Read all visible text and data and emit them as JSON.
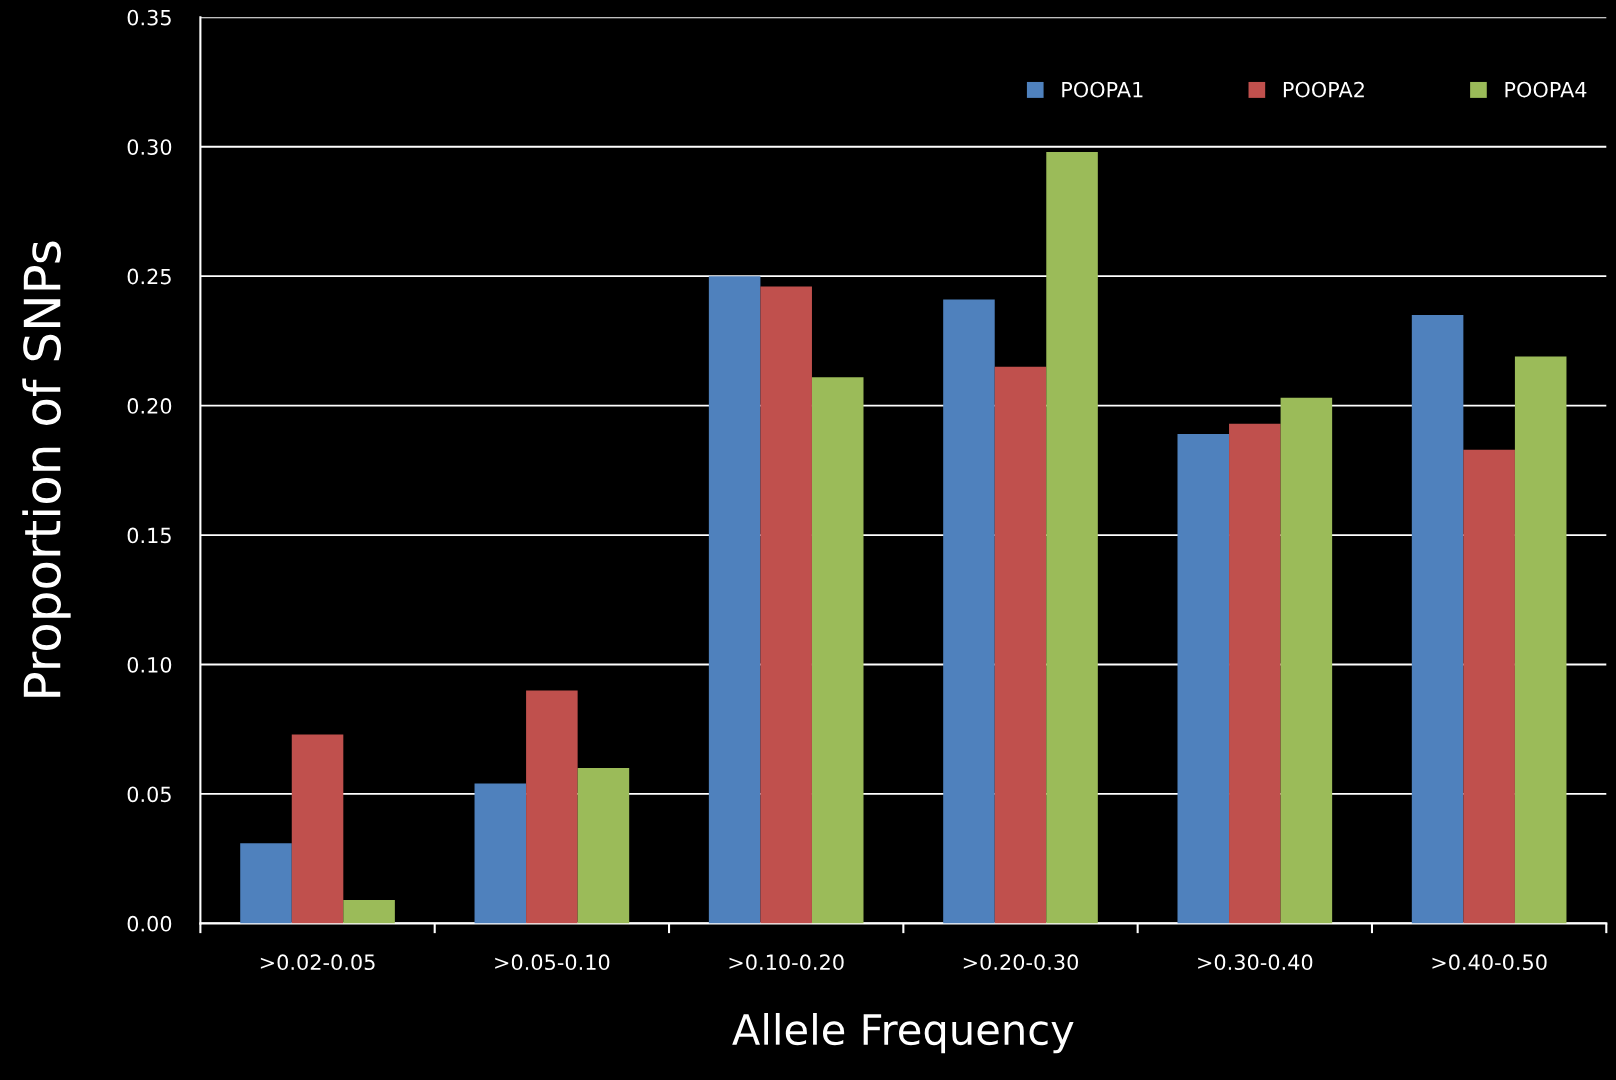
{
  "chart_data": {
    "type": "bar",
    "xlabel": "Allele Frequency",
    "ylabel": "Proportion of SNPs",
    "categories": [
      ">0.02-0.05",
      ">0.05-0.10",
      ">0.10-0.20",
      ">0.20-0.30",
      ">0.30-0.40",
      ">0.40-0.50"
    ],
    "series": [
      {
        "name": "POOPA1",
        "color": "#4f81bd",
        "values": [
          0.031,
          0.054,
          0.25,
          0.241,
          0.189,
          0.235
        ]
      },
      {
        "name": "POOPA2",
        "color": "#c0504d",
        "values": [
          0.073,
          0.09,
          0.246,
          0.215,
          0.193,
          0.183
        ]
      },
      {
        "name": "POOPA4",
        "color": "#9bbb59",
        "values": [
          0.009,
          0.06,
          0.211,
          0.298,
          0.203,
          0.219
        ]
      }
    ],
    "ylim": [
      0,
      0.35
    ],
    "yticks": [
      {
        "value": 0,
        "label": "0.00"
      },
      {
        "value": 0.05,
        "label": "0.05"
      },
      {
        "value": 0.1,
        "label": "0.10"
      },
      {
        "value": 0.15,
        "label": "0.15"
      },
      {
        "value": 0.2,
        "label": "0.20"
      },
      {
        "value": 0.25,
        "label": "0.25"
      },
      {
        "value": 0.3,
        "label": "0.30"
      },
      {
        "value": 0.35,
        "label": "0.35"
      }
    ],
    "grid": "y",
    "legend": "top right"
  }
}
